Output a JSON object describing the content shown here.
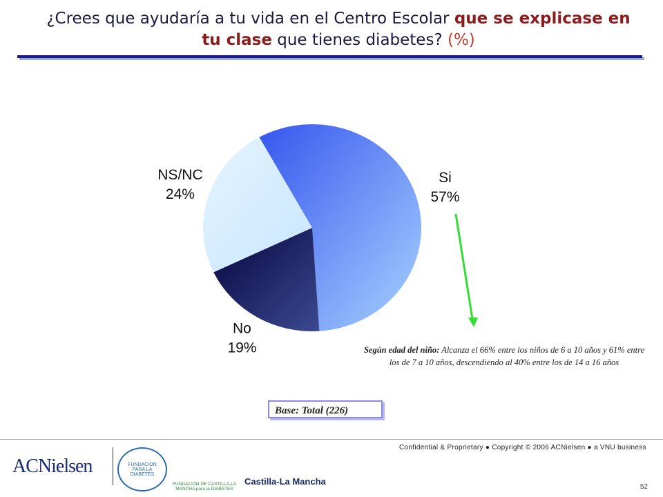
{
  "title": {
    "plain1": "¿Crees que ayudaría a tu vida en el Centro Escolar",
    "bold": "que se explicase en tu clase",
    "plain2": "que tienes diabetes?",
    "unit": "(%)"
  },
  "chart_data": {
    "type": "pie",
    "categories": [
      "Si",
      "No",
      "NS/NC"
    ],
    "values": [
      57,
      19,
      24
    ],
    "value_labels": [
      "57%",
      "19%",
      "24%"
    ],
    "colors": [
      [
        "#3556ee",
        "#a8d2ff"
      ],
      [
        "#05053e",
        "#3c4a90"
      ],
      [
        "#e4f4ff",
        "#c8e6ff"
      ]
    ]
  },
  "note": {
    "lead": "Según edad del niño:",
    "text": "Alcanza el 66% entre los niños de 6 a 10 años y 61% entre los de 7 a 10 años, descendiendo al 40% entre los de 14 a 16 años"
  },
  "base": "Base: Total (226)",
  "footer": {
    "confidential": "Confidential & Proprietary ● Copyright © 2006 ACNielsen ● a VNU business",
    "page": "52"
  },
  "logos": {
    "acnielsen": "ACNielsen",
    "fundacion": "FUNDACION PARA LA DIABETES",
    "fundacion_clm": "FUNDACIÓN DE CASTILLA-LA MANCHA para la DIABETES",
    "castilla": "Castilla-La Mancha"
  }
}
